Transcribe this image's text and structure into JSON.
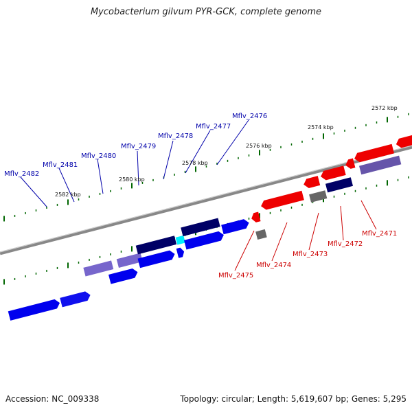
{
  "title": "Mycobacterium gilvum PYR-GCK, complete genome",
  "footer": {
    "accession": "Accession: NC_009338",
    "summary": "Topology: circular; Length: 5,619,607 bp; Genes: 5,295"
  },
  "scale_labels": [
    "2572 kbp",
    "2574 kbp",
    "2576 kbp",
    "2578 kbp",
    "2580 kbp",
    "2582 kbp"
  ],
  "gene_labels_top": [
    "Mflv_2482",
    "Mflv_2481",
    "Mflv_2480",
    "Mflv_2479",
    "Mflv_2478",
    "Mflv_2477",
    "Mflv_2476"
  ],
  "gene_labels_bottom": [
    "Mflv_2475",
    "Mflv_2474",
    "Mflv_2473",
    "Mflv_2472",
    "Mflv_2471"
  ],
  "colors": {
    "forward": "#0000ee",
    "reverse": "#ee0000",
    "dark": "#000066",
    "lavender": "#7766cc",
    "cyan": "#00eeff",
    "gray": "#666666",
    "backbone": "#888888",
    "tick": "#006600"
  }
}
